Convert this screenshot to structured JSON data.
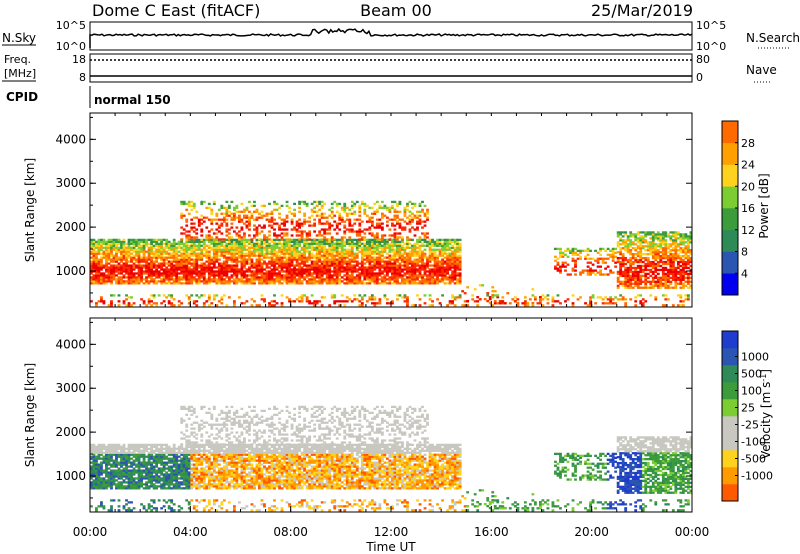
{
  "header": {
    "radar": "Dome C East (fitACF)",
    "beam": "Beam 00",
    "date": "25/Mar/2019"
  },
  "top_panels": {
    "nsky": {
      "label": "N.Sky",
      "tick_top": "10^5",
      "tick_bottom": "10^0",
      "right_tick_top": "10^5",
      "right_tick_bottom": "10^0",
      "right_label": "N.Search"
    },
    "freq": {
      "label_line1": "Freq.",
      "label_line2": "[MHz]",
      "tick_top": "18",
      "tick_bottom": "8",
      "right_tick_top": "80",
      "right_tick_bottom": "0",
      "right_label": "Nave"
    },
    "cpid": {
      "label": "CPID",
      "value": "normal 150"
    }
  },
  "colors": {
    "power_scale": [
      "#0000ee",
      "#2a55b0",
      "#2e8b57",
      "#3c9c3c",
      "#7ccd32",
      "#ffd21e",
      "#ffa000",
      "#ff6a00",
      "#ff2a00",
      "#ee0000"
    ],
    "velocity_scale": [
      "#ee0000",
      "#ff5a00",
      "#ff9a00",
      "#ffd21e",
      "#c8c8c0",
      "#c8c8c0",
      "#7ccd32",
      "#3c9c3c",
      "#2e8b57",
      "#2a55b0",
      "#1e3ccd"
    ]
  },
  "chart_data": [
    {
      "type": "heatmap",
      "name": "power",
      "ylabel": "Slant Range [km]",
      "yticks": [
        "1000",
        "2000",
        "3000",
        "4000"
      ],
      "ylim": [
        180,
        4600
      ],
      "colorbar_label": "Power [dB]",
      "colorbar_ticks": [
        "4",
        "8",
        "12",
        "16",
        "20",
        "24",
        "28"
      ],
      "colorbar_range": [
        0,
        32
      ]
    },
    {
      "type": "heatmap",
      "name": "velocity",
      "ylabel": "Slant Range [km]",
      "yticks": [
        "1000",
        "2000",
        "3000",
        "4000"
      ],
      "ylim": [
        180,
        4600
      ],
      "colorbar_label": "Velocity [m s^-1]",
      "colorbar_ticks": [
        "1000",
        "500",
        "100",
        "25",
        "-25",
        "-100",
        "-500",
        "-1000"
      ]
    }
  ],
  "xaxis": {
    "xlabel": "Time UT",
    "ticks": [
      "00:00",
      "04:00",
      "08:00",
      "12:00",
      "16:00",
      "20:00",
      "00:00"
    ],
    "xlim_hours": [
      0,
      24
    ]
  }
}
